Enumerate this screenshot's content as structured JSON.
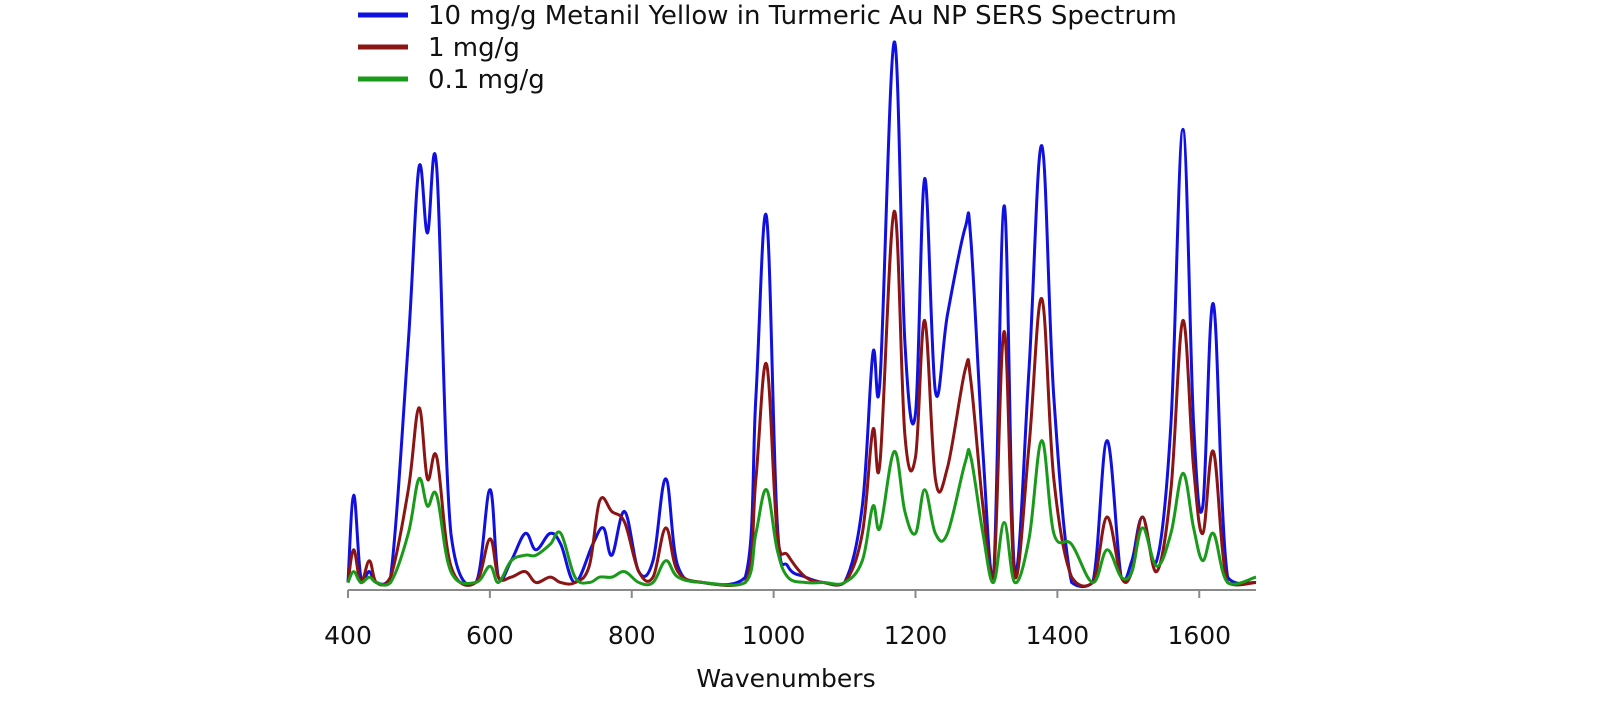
{
  "chart_data": {
    "type": "line",
    "title": "",
    "xlabel": "Wavenumbers",
    "ylabel": "",
    "xlim": [
      400,
      1680
    ],
    "ylim": [
      0,
      1.0
    ],
    "grid": false,
    "legend_position": "top-left",
    "x_ticks": [
      400,
      600,
      800,
      1000,
      1200,
      1400,
      1600
    ],
    "series": [
      {
        "name": "10 mg/g Metanil Yellow in Turmeric Au NP SERS Spectrum",
        "color": "#1010e0",
        "x": [
          400,
          408,
          418,
          430,
          440,
          460,
          485,
          500,
          512,
          525,
          545,
          580,
          600,
          612,
          630,
          650,
          665,
          685,
          700,
          720,
          745,
          760,
          772,
          790,
          810,
          830,
          848,
          865,
          900,
          960,
          975,
          990,
          1005,
          1020,
          1045,
          1070,
          1100,
          1125,
          1140,
          1150,
          1170,
          1185,
          1200,
          1213,
          1228,
          1245,
          1270,
          1278,
          1295,
          1310,
          1325,
          1340,
          1360,
          1378,
          1395,
          1420,
          1450,
          1470,
          1490,
          1505,
          1520,
          1540,
          1560,
          1577,
          1592,
          1605,
          1620,
          1640,
          1680
        ],
        "y": [
          0.01,
          0.17,
          0.02,
          0.03,
          0.01,
          0.02,
          0.45,
          0.77,
          0.65,
          0.77,
          0.1,
          0.01,
          0.18,
          0.02,
          0.05,
          0.1,
          0.07,
          0.1,
          0.08,
          0.01,
          0.08,
          0.11,
          0.06,
          0.14,
          0.03,
          0.05,
          0.2,
          0.04,
          0.01,
          0.02,
          0.35,
          0.68,
          0.12,
          0.04,
          0.02,
          0.01,
          0.01,
          0.15,
          0.43,
          0.38,
          1.0,
          0.45,
          0.32,
          0.75,
          0.36,
          0.5,
          0.66,
          0.64,
          0.25,
          0.02,
          0.7,
          0.03,
          0.4,
          0.81,
          0.35,
          0.01,
          0.01,
          0.27,
          0.02,
          0.05,
          0.13,
          0.05,
          0.3,
          0.84,
          0.3,
          0.15,
          0.52,
          0.02,
          0.01
        ]
      },
      {
        "name": "1 mg/g",
        "color": "#8b1414",
        "x": [
          400,
          408,
          418,
          430,
          440,
          460,
          485,
          500,
          512,
          525,
          545,
          580,
          600,
          612,
          630,
          650,
          665,
          685,
          700,
          720,
          740,
          755,
          772,
          790,
          810,
          830,
          848,
          865,
          900,
          960,
          975,
          990,
          1005,
          1020,
          1045,
          1070,
          1100,
          1125,
          1140,
          1150,
          1170,
          1185,
          1200,
          1213,
          1228,
          1245,
          1270,
          1278,
          1295,
          1310,
          1325,
          1340,
          1360,
          1378,
          1395,
          1420,
          1450,
          1470,
          1490,
          1505,
          1520,
          1540,
          1560,
          1577,
          1592,
          1605,
          1620,
          1640,
          1680
        ],
        "y": [
          0.01,
          0.07,
          0.01,
          0.05,
          0.01,
          0.02,
          0.18,
          0.33,
          0.2,
          0.24,
          0.04,
          0.01,
          0.09,
          0.02,
          0.02,
          0.03,
          0.01,
          0.02,
          0.01,
          0.01,
          0.04,
          0.16,
          0.14,
          0.12,
          0.03,
          0.02,
          0.11,
          0.03,
          0.01,
          0.01,
          0.2,
          0.41,
          0.1,
          0.06,
          0.02,
          0.01,
          0.01,
          0.1,
          0.29,
          0.23,
          0.69,
          0.28,
          0.24,
          0.49,
          0.2,
          0.22,
          0.4,
          0.38,
          0.15,
          0.02,
          0.47,
          0.02,
          0.26,
          0.53,
          0.2,
          0.02,
          0.01,
          0.13,
          0.02,
          0.03,
          0.13,
          0.03,
          0.18,
          0.49,
          0.22,
          0.1,
          0.25,
          0.01,
          0.01
        ]
      },
      {
        "name": "0.1 mg/g",
        "color": "#1a9a1a",
        "x": [
          400,
          408,
          418,
          430,
          440,
          460,
          485,
          500,
          512,
          525,
          545,
          580,
          600,
          612,
          630,
          650,
          665,
          685,
          700,
          720,
          740,
          755,
          772,
          790,
          810,
          830,
          848,
          865,
          900,
          960,
          975,
          990,
          1005,
          1020,
          1045,
          1070,
          1100,
          1125,
          1140,
          1150,
          1170,
          1185,
          1200,
          1213,
          1228,
          1245,
          1270,
          1278,
          1295,
          1310,
          1325,
          1340,
          1360,
          1378,
          1395,
          1420,
          1450,
          1470,
          1490,
          1505,
          1520,
          1540,
          1560,
          1577,
          1592,
          1605,
          1620,
          1640,
          1680
        ],
        "y": [
          0.01,
          0.03,
          0.01,
          0.02,
          0.01,
          0.01,
          0.1,
          0.2,
          0.15,
          0.17,
          0.03,
          0.01,
          0.04,
          0.01,
          0.05,
          0.06,
          0.06,
          0.08,
          0.1,
          0.02,
          0.01,
          0.02,
          0.02,
          0.03,
          0.01,
          0.01,
          0.05,
          0.02,
          0.01,
          0.01,
          0.1,
          0.18,
          0.07,
          0.02,
          0.01,
          0.01,
          0.01,
          0.05,
          0.15,
          0.11,
          0.25,
          0.14,
          0.1,
          0.18,
          0.1,
          0.1,
          0.23,
          0.24,
          0.1,
          0.01,
          0.12,
          0.01,
          0.09,
          0.27,
          0.1,
          0.08,
          0.01,
          0.07,
          0.02,
          0.03,
          0.11,
          0.04,
          0.1,
          0.21,
          0.11,
          0.05,
          0.1,
          0.01,
          0.02
        ]
      }
    ]
  }
}
